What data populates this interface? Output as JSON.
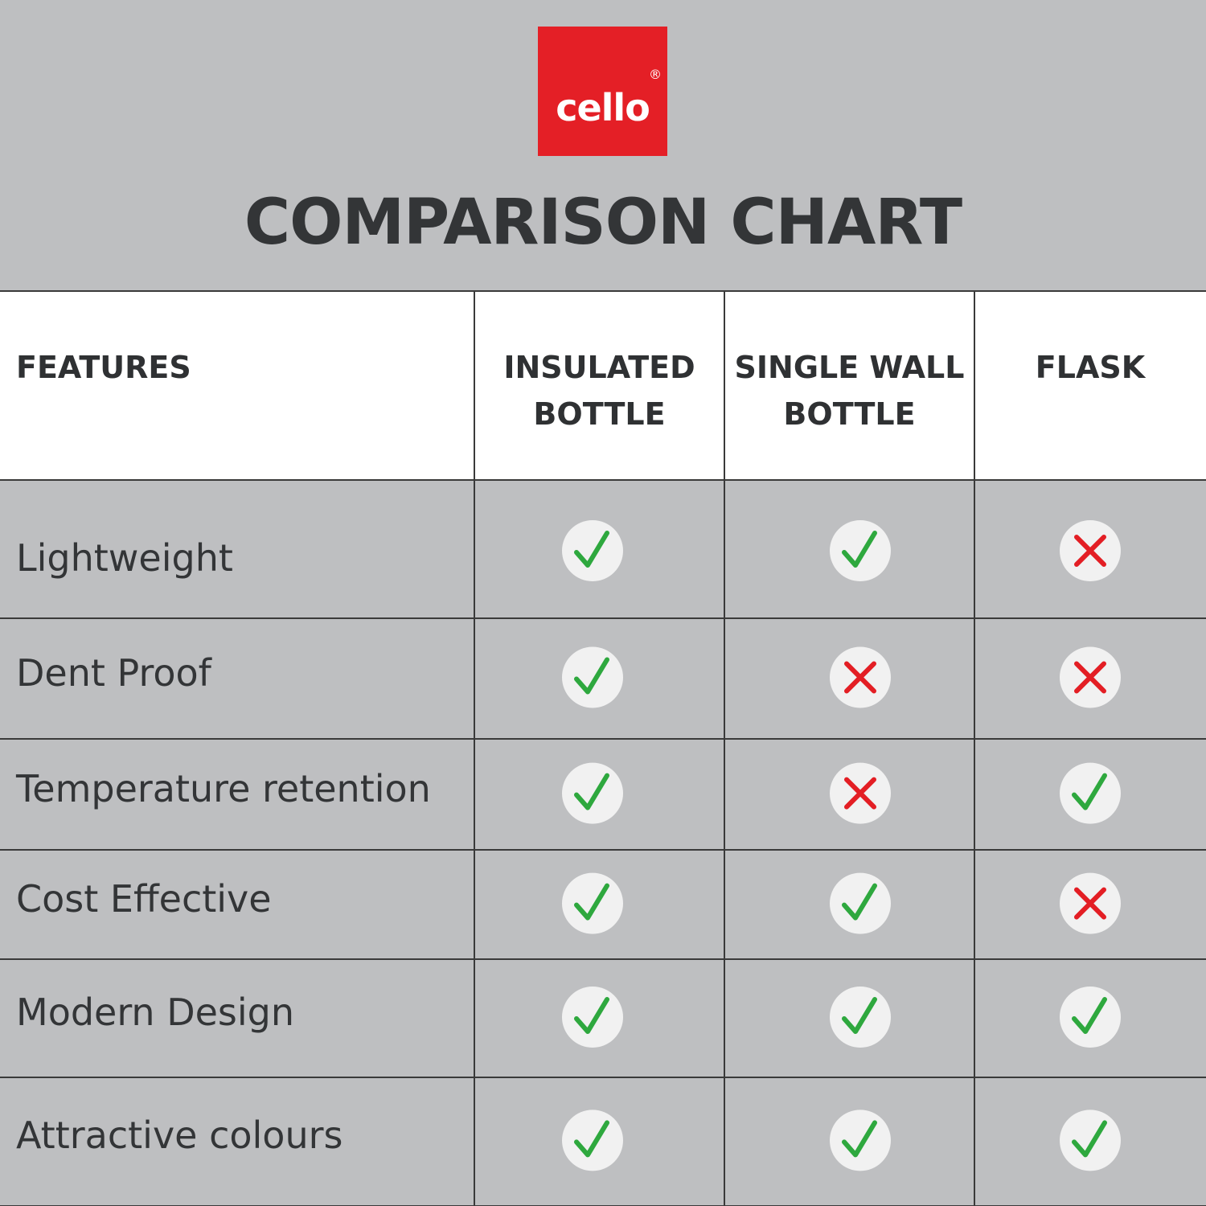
{
  "logo": {
    "text": "cello",
    "mark": "®"
  },
  "title": "COMPARISON CHART",
  "table": {
    "header": [
      "FEATURES",
      "INSULATED BOTTLE",
      "SINGLE WALL BOTTLE",
      "FLASK"
    ],
    "rows": [
      {
        "feature": "Lightweight",
        "values": [
          true,
          true,
          false
        ]
      },
      {
        "feature": "Dent Proof",
        "values": [
          true,
          false,
          false
        ]
      },
      {
        "feature": "Temperature retention",
        "values": [
          true,
          false,
          true
        ]
      },
      {
        "feature": "Cost Effective",
        "values": [
          true,
          true,
          false
        ]
      },
      {
        "feature": "Modern Design",
        "values": [
          true,
          true,
          true
        ]
      },
      {
        "feature": "Attractive colours",
        "values": [
          true,
          true,
          true
        ]
      }
    ]
  }
}
